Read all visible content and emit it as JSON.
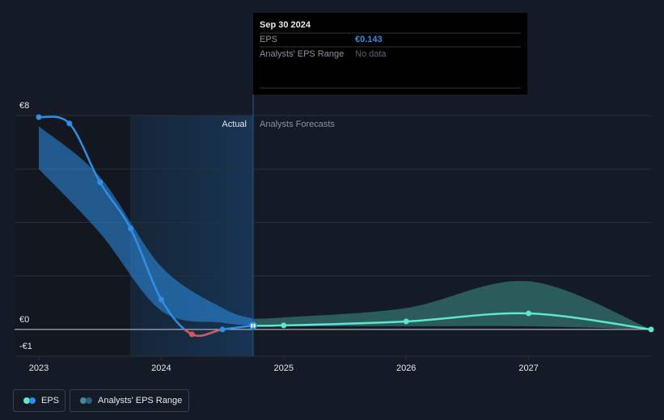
{
  "chart_data": {
    "type": "line",
    "xlim": [
      2023,
      2028
    ],
    "xticks": [
      2023,
      2024,
      2025,
      2026,
      2027
    ],
    "ylim": [
      -1,
      8
    ],
    "yticks": [
      {
        "value": 8,
        "label": "€8"
      },
      {
        "value": 0,
        "label": "€0"
      },
      {
        "value": -1,
        "label": "-€1"
      }
    ],
    "ygrid": [
      0,
      2,
      4,
      6,
      8
    ],
    "section_labels": [
      "Actual",
      "Analysts Forecasts"
    ],
    "series": [
      {
        "name": "EPS",
        "color": "#2d8fe6",
        "negative_color": "#e0525b",
        "x": [
          2023,
          2023.25,
          2023.5,
          2023.75,
          2024,
          2024.25,
          2024.5,
          2024.75
        ],
        "values": [
          7.94,
          7.7,
          5.5,
          3.77,
          1.12,
          -0.18,
          0,
          0.143
        ]
      },
      {
        "name": "EPS",
        "color": "#5ee6d0",
        "x": [
          2024.75,
          2025,
          2026,
          2027,
          2028
        ],
        "values": [
          0.143,
          0.15,
          0.3,
          0.6,
          0
        ]
      }
    ],
    "range": {
      "name": "Analysts' EPS Range",
      "color": "#2d8fe6",
      "forecast_color": "#3f8f86",
      "x": [
        2023,
        2023.5,
        2024,
        2024.5,
        2024.75,
        2025,
        2026,
        2027,
        2028
      ],
      "upper": [
        7.6,
        5.7,
        2.35,
        0.8,
        0.4,
        0.45,
        0.8,
        1.8,
        0
      ],
      "lower": [
        6.0,
        3.6,
        0.7,
        0.25,
        0.15,
        0.12,
        0.12,
        0.12,
        0
      ]
    },
    "tooltip": {
      "date": "Sep 30 2024",
      "rows": [
        [
          "EPS",
          "€0.143"
        ],
        [
          "Analysts' EPS Range",
          "No data"
        ]
      ]
    }
  }
}
